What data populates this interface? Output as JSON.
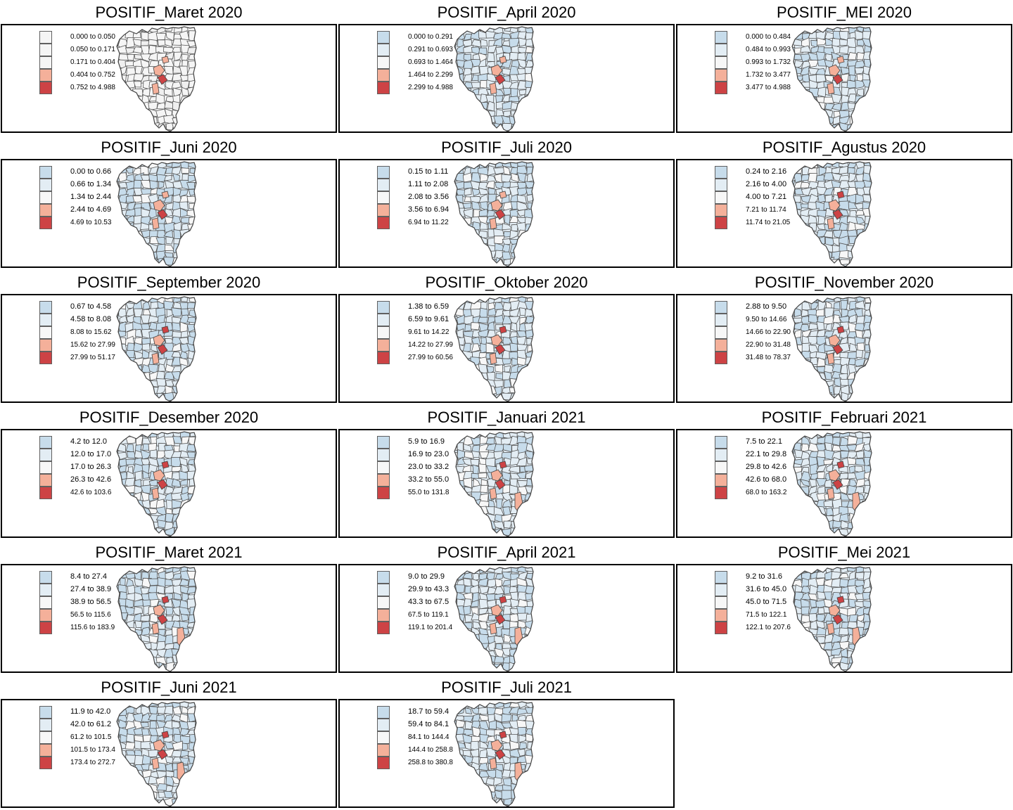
{
  "palette": [
    "#c7dceb",
    "#e3edf4",
    "#f7f7f7",
    "#f4b09a",
    "#cd4345"
  ],
  "panels": [
    {
      "title": "POSITIF_Maret 2020",
      "legend": [
        "0.000 to 0.050",
        "0.050 to 0.171",
        "0.171 to 0.404",
        "0.404 to 0.752",
        "0.752 to 4.988"
      ],
      "colors": [
        "#f5f5f5",
        "#f5f5f5",
        "#f5f5f5",
        "#f4b09a",
        "#cd4345"
      ]
    },
    {
      "title": "POSITIF_April 2020",
      "legend": [
        "0.000 to 0.291",
        "0.291 to 0.693",
        "0.693 to 1.464",
        "1.464 to 2.299",
        "2.299 to 4.988"
      ]
    },
    {
      "title": "POSITIF_MEI 2020",
      "legend": [
        "0.000 to 0.484",
        "0.484 to 0.993",
        "0.993 to 1.732",
        "1.732 to 3.477",
        "3.477 to 4.988"
      ]
    },
    {
      "title": "POSITIF_Juni 2020",
      "legend": [
        "0.00 to 0.66",
        "0.66 to 1.34",
        "1.34 to 2.44",
        "2.44 to 4.69",
        "4.69 to 10.53"
      ]
    },
    {
      "title": "POSITIF_Juli 2020",
      "legend": [
        "0.15 to 1.11",
        "1.11 to 2.08",
        "2.08 to 3.56",
        "3.56 to 6.94",
        "6.94 to 11.22"
      ]
    },
    {
      "title": "POSITIF_Agustus 2020",
      "legend": [
        "0.24 to 2.16",
        "2.16 to 4.00",
        "4.00 to 7.21",
        "7.21 to 11.74",
        "11.74 to 21.05"
      ]
    },
    {
      "title": "POSITIF_September 2020",
      "legend": [
        "0.67 to 4.58",
        "4.58 to 8.08",
        "8.08 to 15.62",
        "15.62 to 27.99",
        "27.99 to 51.17"
      ]
    },
    {
      "title": "POSITIF_Oktober 2020",
      "legend": [
        "1.38 to 6.59",
        "6.59 to 9.61",
        "9.61 to 14.22",
        "14.22 to 27.99",
        "27.99 to 60.56"
      ]
    },
    {
      "title": "POSITIF_November 2020",
      "legend": [
        "2.88 to 9.50",
        "9.50 to 14.66",
        "14.66 to 22.90",
        "22.90 to 31.48",
        "31.48 to 78.37"
      ]
    },
    {
      "title": "POSITIF_Desember 2020",
      "legend": [
        "4.2 to 12.0",
        "12.0 to 17.0",
        "17.0 to 26.3",
        "26.3 to 42.6",
        "42.6 to 103.6"
      ]
    },
    {
      "title": "POSITIF_Januari 2021",
      "legend": [
        "5.9 to 16.9",
        "16.9 to 23.0",
        "23.0 to 33.2",
        "33.2 to 55.0",
        "55.0 to 131.8"
      ]
    },
    {
      "title": "POSITIF_Februari 2021",
      "legend": [
        "7.5 to 22.1",
        "22.1 to 29.8",
        "29.8 to 42.6",
        "42.6 to 68.0",
        "68.0 to 163.2"
      ]
    },
    {
      "title": "POSITIF_Maret 2021",
      "legend": [
        "8.4 to 27.4",
        "27.4 to 38.9",
        "38.9 to 56.5",
        "56.5 to 115.6",
        "115.6 to 183.9"
      ]
    },
    {
      "title": "POSITIF_April 2021",
      "legend": [
        "9.0 to 29.9",
        "29.9 to 43.3",
        "43.3 to 67.5",
        "67.5 to 119.1",
        "119.1 to 201.4"
      ]
    },
    {
      "title": "POSITIF_Mei 2021",
      "legend": [
        "9.2 to 31.6",
        "31.6 to 45.0",
        "45.0 to 71.5",
        "71.5 to 122.1",
        "122.1 to 207.6"
      ]
    },
    {
      "title": "POSITIF_Juni 2021",
      "legend": [
        "11.9 to 42.0",
        "42.0 to 61.2",
        "61.2 to 101.5",
        "101.5 to 173.4",
        "173.4 to 272.7"
      ]
    },
    {
      "title": "POSITIF_Juli 2021",
      "legend": [
        "18.7 to 59.4",
        "59.4 to 84.1",
        "84.1 to 144.4",
        "144.4 to 258.8",
        "258.8 to 380.8"
      ]
    }
  ]
}
